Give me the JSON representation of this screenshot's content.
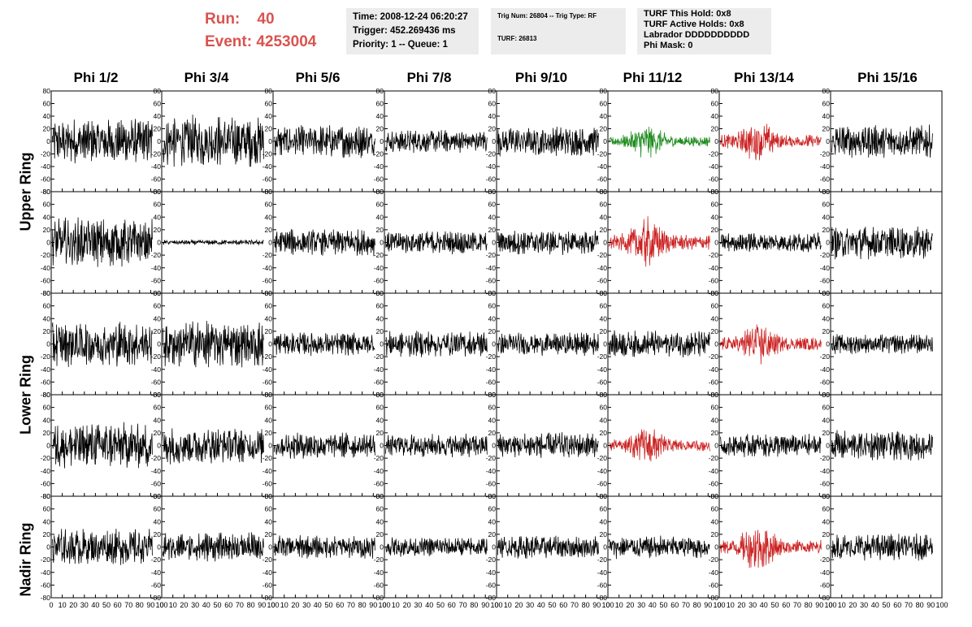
{
  "run_info": {
    "run_label": "Run:",
    "run_value": "40",
    "event_label": "Event:",
    "event_value": "4253004"
  },
  "info_box_1": [
    "Time: 2008-12-24 06:20:27",
    "Trigger: 452.269436 ms",
    "Priority: 1 -- Queue: 1"
  ],
  "info_box_2": {
    "line1": "Trig Num: 26804 -- Trig Type: RF",
    "line2": "TURF: 26813"
  },
  "info_box_3": [
    "TURF This Hold: 0x8",
    "TURF Active Holds: 0x8",
    "Labrador DDDDDDDDDD",
    "Phi Mask: 0"
  ],
  "columns": [
    "Phi 1/2",
    "Phi 3/4",
    "Phi 5/6",
    "Phi 7/8",
    "Phi 9/10",
    "Phi 11/12",
    "Phi 13/14",
    "Phi 15/16"
  ],
  "rows": [
    "Upper Ring",
    "Lower Ring",
    "Nadir Ring"
  ],
  "colors": {
    "default": "#000000",
    "green": "#1e8c1e",
    "red": "#cc2222",
    "run_text": "#d9534f",
    "box_bg": "#ececec"
  },
  "chart_data": {
    "type": "line",
    "xlim": [
      0,
      100
    ],
    "ylim": [
      -80,
      80
    ],
    "x_ticks": [
      0,
      10,
      20,
      30,
      40,
      50,
      60,
      70,
      80,
      90,
      100
    ],
    "y_ticks": [
      -80,
      -60,
      -40,
      -20,
      0,
      20,
      40,
      60,
      80
    ],
    "panel_rows": 5,
    "panel_cols": 8,
    "highlighted_panels": [
      {
        "row": 0,
        "col": 5,
        "color": "green"
      },
      {
        "row": 0,
        "col": 6,
        "color": "red"
      },
      {
        "row": 1,
        "col": 5,
        "color": "red"
      },
      {
        "row": 2,
        "col": 6,
        "color": "red"
      },
      {
        "row": 3,
        "col": 5,
        "color": "red"
      },
      {
        "row": 4,
        "col": 6,
        "color": "red"
      }
    ],
    "trace_amplitudes": [
      [
        28,
        32,
        20,
        14,
        18,
        14,
        18,
        20
      ],
      [
        30,
        3,
        16,
        14,
        15,
        20,
        12,
        20
      ],
      [
        28,
        28,
        14,
        16,
        14,
        16,
        18,
        12
      ],
      [
        28,
        22,
        16,
        14,
        16,
        16,
        14,
        18
      ],
      [
        22,
        18,
        14,
        12,
        14,
        14,
        20,
        16
      ]
    ]
  }
}
